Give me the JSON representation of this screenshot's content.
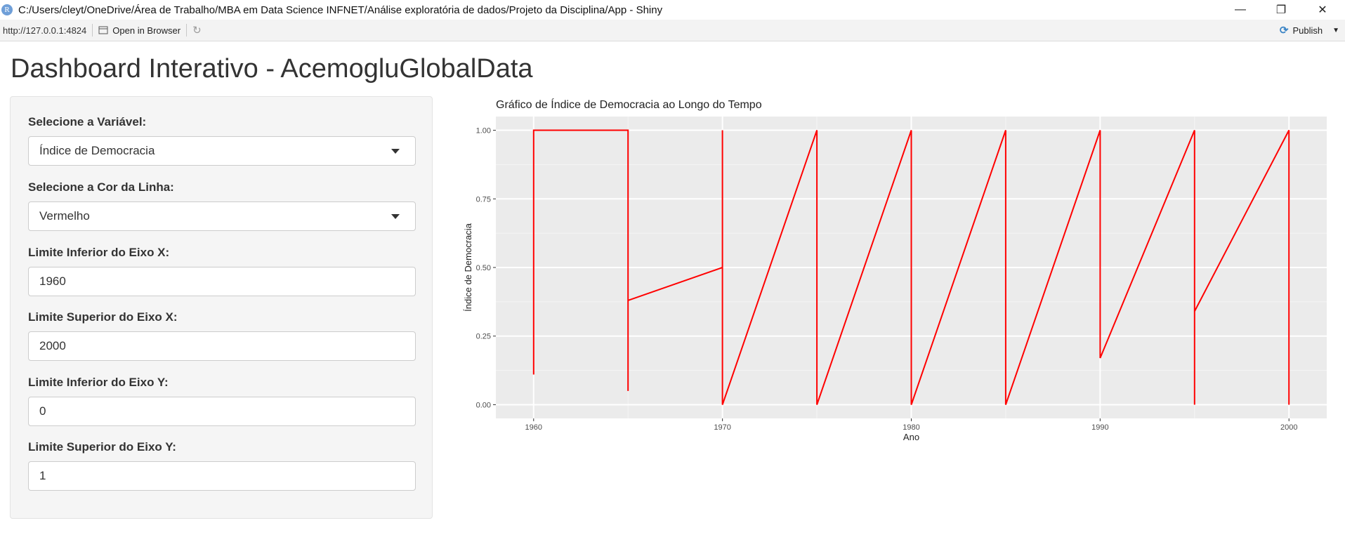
{
  "window": {
    "title": "C:/Users/cleyt/OneDrive/Área de Trabalho/MBA em Data Science INFNET/Análise exploratória de dados/Projeto da Disciplina/App - Shiny",
    "icon_letter": "R"
  },
  "toolbar": {
    "url": "http://127.0.0.1:4824",
    "open_in_browser_label": "Open in Browser",
    "publish_label": "Publish"
  },
  "page": {
    "title": "Dashboard Interativo - AcemogluGlobalData"
  },
  "controls": {
    "variable": {
      "label": "Selecione a Variável:",
      "value": "Índice de Democracia"
    },
    "line_color": {
      "label": "Selecione a Cor da Linha:",
      "value": "Vermelho"
    },
    "x_min": {
      "label": "Limite Inferior do Eixo X:",
      "value": "1960"
    },
    "x_max": {
      "label": "Limite Superior do Eixo X:",
      "value": "2000"
    },
    "y_min": {
      "label": "Limite Inferior do Eixo Y:",
      "value": "0"
    },
    "y_max": {
      "label": "Limite Superior do Eixo Y:",
      "value": "1"
    }
  },
  "chart_data": {
    "type": "line",
    "title": "Gráfico de Índice de Democracia ao Longo do Tempo",
    "xlabel": "Ano",
    "ylabel": "Índice de Democracia",
    "xlim": [
      1958,
      2002
    ],
    "ylim": [
      -0.05,
      1.05
    ],
    "x_ticks": [
      1960,
      1970,
      1980,
      1990,
      2000
    ],
    "y_ticks": [
      0.0,
      0.25,
      0.5,
      0.75,
      1.0
    ],
    "y_tick_labels": [
      "0.00",
      "0.25",
      "0.50",
      "0.75",
      "1.00"
    ],
    "line_color": "#ff0000",
    "panel_color": "#ebebeb",
    "grid": true,
    "series": [
      {
        "x": [
          1960,
          1960,
          1965,
          1965,
          1965,
          1970,
          1970,
          1970,
          1975,
          1975,
          1980,
          1980,
          1985,
          1985,
          1990,
          1990,
          1995,
          1995,
          1995,
          2000,
          2000
        ],
        "y": [
          0.11,
          1.0,
          1.0,
          0.05,
          0.38,
          0.5,
          1.0,
          0.0,
          1.0,
          0.0,
          1.0,
          0.0,
          1.0,
          0.0,
          1.0,
          0.17,
          1.0,
          0.0,
          0.34,
          1.0,
          0.0
        ]
      }
    ]
  }
}
